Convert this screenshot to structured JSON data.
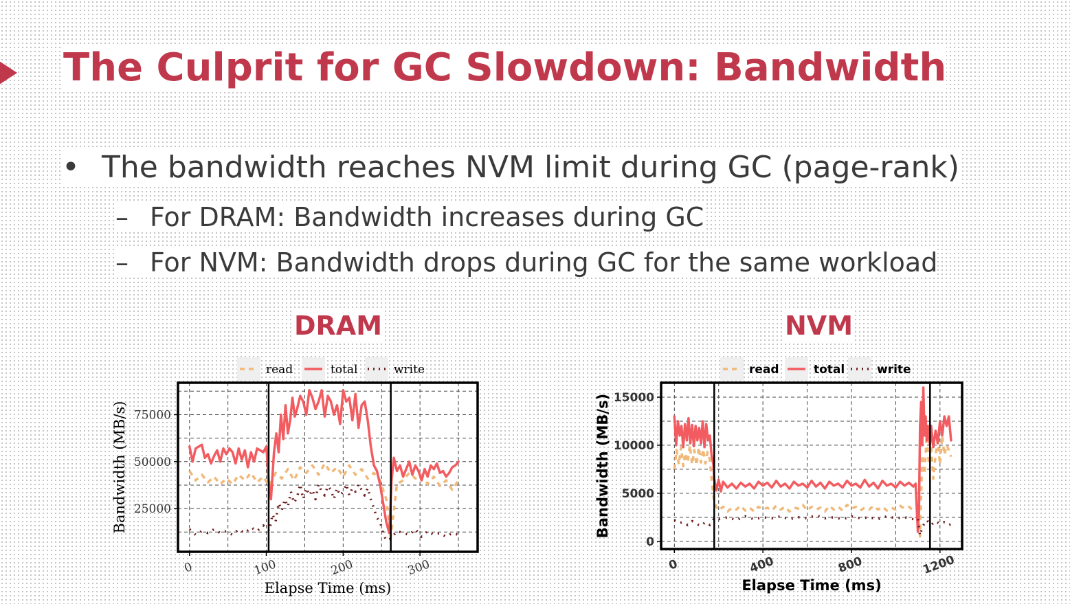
{
  "slide": {
    "title": "The Culprit for GC Slowdown: Bandwidth",
    "bullets": [
      {
        "marker": "•",
        "text": "The bandwidth reaches NVM limit during GC (page-rank)"
      },
      {
        "marker": "–",
        "text": "For DRAM: Bandwidth increases during GC"
      },
      {
        "marker": "–",
        "text": "For NVM: Bandwidth drops during GC for the same workload"
      }
    ]
  },
  "colors": {
    "accent": "#c0384c",
    "read": "#f0b97a",
    "total": "#f25c60",
    "write": "#6b1a1a"
  },
  "chart_data": [
    {
      "type": "line",
      "title": "DRAM",
      "xlabel": "Elapse Time (ms)",
      "ylabel": "Bandwidth (MB/s)",
      "xlim": [
        -15,
        375
      ],
      "ylim": [
        2000,
        92000
      ],
      "xticks": [
        0,
        100,
        200,
        300
      ],
      "yticks": [
        25000,
        50000,
        75000
      ],
      "grid": true,
      "legend": {
        "position": "top",
        "entries": [
          "read",
          "total",
          "write"
        ]
      },
      "gc_markers": [
        103,
        262
      ],
      "series": [
        {
          "name": "read",
          "style": "dashed",
          "x": [
            0,
            8,
            16,
            24,
            32,
            40,
            48,
            56,
            64,
            72,
            80,
            88,
            96,
            104,
            112,
            120,
            128,
            136,
            144,
            152,
            160,
            168,
            176,
            184,
            192,
            200,
            208,
            216,
            224,
            232,
            240,
            248,
            256,
            262,
            270,
            278,
            286,
            294,
            302,
            310,
            318,
            326,
            334,
            342,
            350
          ],
          "y": [
            45000,
            40000,
            43000,
            39000,
            42000,
            38000,
            41000,
            38000,
            43000,
            40000,
            44000,
            39000,
            42000,
            37000,
            44000,
            41000,
            46000,
            40000,
            47000,
            44000,
            48000,
            43000,
            49000,
            44000,
            47000,
            42000,
            48000,
            43000,
            46000,
            41000,
            44000,
            40000,
            30000,
            10000,
            38000,
            40000,
            44000,
            41000,
            43000,
            38000,
            42000,
            37000,
            40000,
            35000,
            40000
          ]
        },
        {
          "name": "total",
          "x": [
            0,
            4,
            8,
            12,
            16,
            20,
            24,
            28,
            32,
            36,
            40,
            44,
            48,
            52,
            56,
            60,
            64,
            68,
            72,
            76,
            80,
            84,
            88,
            92,
            96,
            100,
            103,
            106,
            110,
            113,
            116,
            119,
            122,
            125,
            128,
            131,
            134,
            137,
            140,
            144,
            148,
            152,
            156,
            160,
            164,
            168,
            172,
            176,
            180,
            184,
            188,
            192,
            196,
            200,
            204,
            208,
            212,
            216,
            220,
            224,
            228,
            232,
            236,
            240,
            244,
            248,
            252,
            256,
            260,
            263,
            266,
            270,
            274,
            278,
            282,
            286,
            290,
            294,
            298,
            302,
            306,
            310,
            314,
            318,
            322,
            326,
            330,
            334,
            338,
            342,
            346,
            350
          ],
          "y": [
            58000,
            50000,
            57000,
            58000,
            59000,
            52000,
            54000,
            49000,
            53000,
            56000,
            50000,
            57000,
            54000,
            57000,
            55000,
            49000,
            57000,
            51000,
            56000,
            47000,
            55000,
            50000,
            57000,
            56000,
            55000,
            58000,
            40000,
            30000,
            55000,
            65000,
            55000,
            75000,
            62000,
            80000,
            65000,
            72000,
            84000,
            74000,
            78000,
            85000,
            82000,
            75000,
            88000,
            84000,
            78000,
            82000,
            88000,
            74000,
            85000,
            82000,
            75000,
            80000,
            70000,
            88000,
            82000,
            84000,
            72000,
            86000,
            68000,
            80000,
            82000,
            72000,
            58000,
            48000,
            45000,
            38000,
            28000,
            18000,
            12000,
            40000,
            52000,
            45000,
            48000,
            42000,
            46000,
            50000,
            43000,
            48000,
            45000,
            40000,
            46000,
            42000,
            48000,
            46000,
            49000,
            44000,
            45000,
            42000,
            44000,
            47000,
            48000,
            50000
          ]
        },
        {
          "name": "write",
          "style": "dotted",
          "x": [
            0,
            8,
            16,
            24,
            32,
            40,
            48,
            56,
            64,
            72,
            80,
            88,
            96,
            104,
            108,
            112,
            116,
            120,
            124,
            128,
            132,
            136,
            140,
            144,
            148,
            152,
            156,
            160,
            164,
            168,
            172,
            176,
            180,
            184,
            188,
            192,
            196,
            200,
            204,
            208,
            212,
            216,
            220,
            224,
            228,
            232,
            236,
            240,
            244,
            248,
            252,
            256,
            262,
            270,
            278,
            286,
            294,
            302,
            310,
            318,
            326,
            334,
            342,
            350
          ],
          "y": [
            14000,
            11000,
            13000,
            12000,
            14000,
            12000,
            13000,
            11000,
            14000,
            12000,
            15000,
            13000,
            16000,
            13000,
            22000,
            18000,
            28000,
            24000,
            30000,
            26000,
            34000,
            28000,
            31000,
            38000,
            30000,
            36000,
            32000,
            35000,
            30000,
            38000,
            34000,
            32000,
            37000,
            35000,
            30000,
            36000,
            32000,
            34000,
            38000,
            32000,
            36000,
            34000,
            38000,
            35000,
            32000,
            36000,
            30000,
            25000,
            20000,
            18000,
            12000,
            8000,
            9000,
            13000,
            12000,
            11000,
            14000,
            10000,
            13000,
            11000,
            12000,
            10000,
            12000,
            11000
          ]
        }
      ]
    },
    {
      "type": "line",
      "title": "NVM",
      "xlabel": "Elapse Time (ms)",
      "ylabel": "Bandwidth (MB/s)",
      "xlim": [
        -60,
        1300
      ],
      "ylim": [
        -800,
        16500
      ],
      "xticks": [
        0,
        400,
        800,
        1200
      ],
      "yticks": [
        0,
        5000,
        10000,
        15000
      ],
      "grid": true,
      "legend": {
        "position": "top",
        "entries": [
          "read",
          "total",
          "write"
        ]
      },
      "gc_markers": [
        180,
        1155
      ],
      "series": [
        {
          "name": "read",
          "style": "dashed",
          "x": [
            0,
            10,
            20,
            30,
            40,
            50,
            60,
            70,
            80,
            90,
            100,
            110,
            120,
            130,
            140,
            150,
            160,
            170,
            180,
            200,
            220,
            240,
            260,
            280,
            300,
            320,
            340,
            360,
            380,
            400,
            420,
            440,
            460,
            480,
            500,
            520,
            540,
            560,
            580,
            600,
            620,
            640,
            660,
            680,
            700,
            720,
            740,
            760,
            780,
            800,
            820,
            840,
            860,
            880,
            900,
            920,
            940,
            960,
            980,
            1000,
            1020,
            1040,
            1060,
            1080,
            1100,
            1110,
            1120,
            1130,
            1140,
            1150,
            1160,
            1170,
            1180,
            1190,
            1200,
            1210,
            1220,
            1230,
            1240,
            1250
          ],
          "y": [
            7500,
            9500,
            8000,
            9800,
            7800,
            9200,
            8200,
            10000,
            8000,
            9500,
            7900,
            9800,
            8200,
            9600,
            8100,
            9300,
            8500,
            6000,
            4000,
            3200,
            3600,
            3100,
            3500,
            3300,
            3700,
            3200,
            3500,
            3100,
            3600,
            3300,
            3500,
            3200,
            3700,
            3300,
            3600,
            3100,
            3500,
            3400,
            3800,
            3200,
            3600,
            3300,
            3500,
            3100,
            3700,
            3300,
            3600,
            3200,
            3800,
            3400,
            3600,
            3200,
            3500,
            3300,
            3700,
            3300,
            3600,
            3200,
            3500,
            3300,
            3700,
            3400,
            3600,
            3200,
            3500,
            500,
            9000,
            7000,
            11000,
            8000,
            10000,
            6500,
            9000,
            10500,
            8000,
            11000,
            9000,
            10000,
            9500,
            8800
          ]
        },
        {
          "name": "total",
          "x": [
            0,
            8,
            16,
            24,
            32,
            40,
            48,
            56,
            64,
            72,
            80,
            88,
            96,
            104,
            112,
            120,
            128,
            136,
            144,
            152,
            160,
            168,
            176,
            180,
            190,
            200,
            210,
            220,
            240,
            260,
            280,
            300,
            320,
            340,
            360,
            380,
            400,
            420,
            440,
            460,
            480,
            500,
            520,
            540,
            560,
            580,
            600,
            620,
            640,
            660,
            680,
            700,
            720,
            740,
            760,
            780,
            800,
            820,
            840,
            860,
            880,
            900,
            920,
            940,
            960,
            980,
            1000,
            1020,
            1040,
            1060,
            1080,
            1090,
            1100,
            1105,
            1110,
            1115,
            1120,
            1125,
            1130,
            1135,
            1140,
            1145,
            1150,
            1155,
            1160,
            1170,
            1180,
            1190,
            1200,
            1210,
            1220,
            1230,
            1240,
            1250
          ],
          "y": [
            13000,
            10000,
            12500,
            11000,
            12000,
            9800,
            12200,
            10500,
            12800,
            10200,
            12100,
            9900,
            12000,
            10500,
            11800,
            10200,
            12500,
            9800,
            12200,
            10500,
            11000,
            9000,
            8000,
            6500,
            5300,
            6400,
            5200,
            6200,
            5600,
            6000,
            5500,
            6100,
            5700,
            6000,
            5500,
            6200,
            5800,
            6100,
            5600,
            6300,
            5700,
            6000,
            5500,
            6200,
            5800,
            6000,
            5600,
            6300,
            5700,
            6100,
            5500,
            6200,
            5800,
            6000,
            5600,
            6300,
            5800,
            6000,
            5600,
            6400,
            5700,
            6100,
            5500,
            6300,
            5800,
            6000,
            5600,
            6200,
            5800,
            6100,
            5700,
            6000,
            1000,
            3000,
            12000,
            14500,
            10000,
            16000,
            11000,
            13000,
            10500,
            12000,
            11000,
            10000,
            12000,
            9800,
            11500,
            10200,
            12500,
            11000,
            13000,
            12000,
            13000,
            10500
          ]
        },
        {
          "name": "write",
          "style": "dotted",
          "x": [
            0,
            20,
            40,
            60,
            80,
            100,
            120,
            140,
            160,
            180,
            200,
            240,
            280,
            320,
            360,
            400,
            440,
            480,
            520,
            560,
            600,
            640,
            680,
            720,
            760,
            800,
            840,
            880,
            920,
            960,
            1000,
            1040,
            1080,
            1100,
            1110,
            1120,
            1140,
            1160,
            1180,
            1200,
            1220,
            1240,
            1250
          ],
          "y": [
            2200,
            1900,
            2000,
            1700,
            2100,
            1800,
            1600,
            2000,
            1700,
            2400,
            2300,
            2500,
            2200,
            2600,
            2300,
            2500,
            2400,
            2600,
            2300,
            2500,
            2400,
            2700,
            2400,
            2500,
            2300,
            2600,
            2400,
            2500,
            2300,
            2600,
            2400,
            2500,
            2300,
            2400,
            600,
            1500,
            2200,
            1700,
            2100,
            1800,
            2000,
            1700,
            1800
          ]
        }
      ]
    }
  ]
}
